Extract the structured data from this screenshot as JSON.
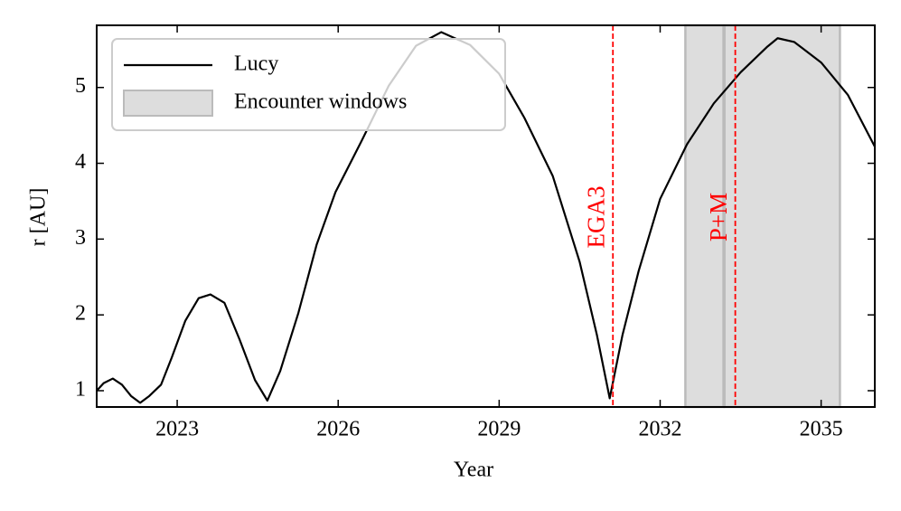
{
  "chart_data": {
    "type": "line",
    "xlabel": "Year",
    "ylabel": "r [AU]",
    "xlim": [
      2021.5,
      2036.0
    ],
    "ylim": [
      0.785,
      5.82
    ],
    "xticks": [
      2023,
      2026,
      2029,
      2032,
      2035
    ],
    "yticks": [
      1,
      2,
      3,
      4,
      5
    ],
    "x": [
      2021.5,
      2021.63,
      2021.8,
      2021.97,
      2022.14,
      2022.31,
      2022.48,
      2022.7,
      2022.9,
      2023.15,
      2023.4,
      2023.62,
      2023.88,
      2024.16,
      2024.45,
      2024.68,
      2024.92,
      2025.26,
      2025.6,
      2025.95,
      2026.44,
      2026.94,
      2027.45,
      2027.92,
      2028.46,
      2029.0,
      2029.47,
      2030.0,
      2030.5,
      2030.82,
      2031.06,
      2031.3,
      2031.6,
      2032.0,
      2032.5,
      2033.0,
      2033.5,
      2034.0,
      2034.19,
      2034.5,
      2035.0,
      2035.5,
      2036.0
    ],
    "series": [
      {
        "name": "Lucy",
        "color": "#000000",
        "values": [
          1.0,
          1.1,
          1.16,
          1.08,
          0.93,
          0.84,
          0.93,
          1.08,
          1.44,
          1.92,
          2.22,
          2.27,
          2.16,
          1.68,
          1.14,
          0.87,
          1.26,
          2.03,
          2.93,
          3.62,
          4.3,
          5.02,
          5.55,
          5.73,
          5.56,
          5.18,
          4.6,
          3.83,
          2.7,
          1.74,
          0.9,
          1.74,
          2.58,
          3.53,
          4.25,
          4.79,
          5.2,
          5.54,
          5.65,
          5.6,
          5.33,
          4.9,
          4.22
        ]
      }
    ],
    "shaded": {
      "name": "Encounter windows",
      "color": "#dddddd",
      "edge_color": "#bbbbbb",
      "ranges": [
        [
          2032.47,
          2033.18
        ],
        [
          2033.2,
          2035.35
        ]
      ]
    },
    "vlines": [
      {
        "x": 2031.12,
        "label": "EGA3",
        "color": "#ff0000"
      },
      {
        "x": 2033.4,
        "label": "P+M",
        "color": "#ff0000"
      }
    ],
    "legend": "upper left"
  }
}
